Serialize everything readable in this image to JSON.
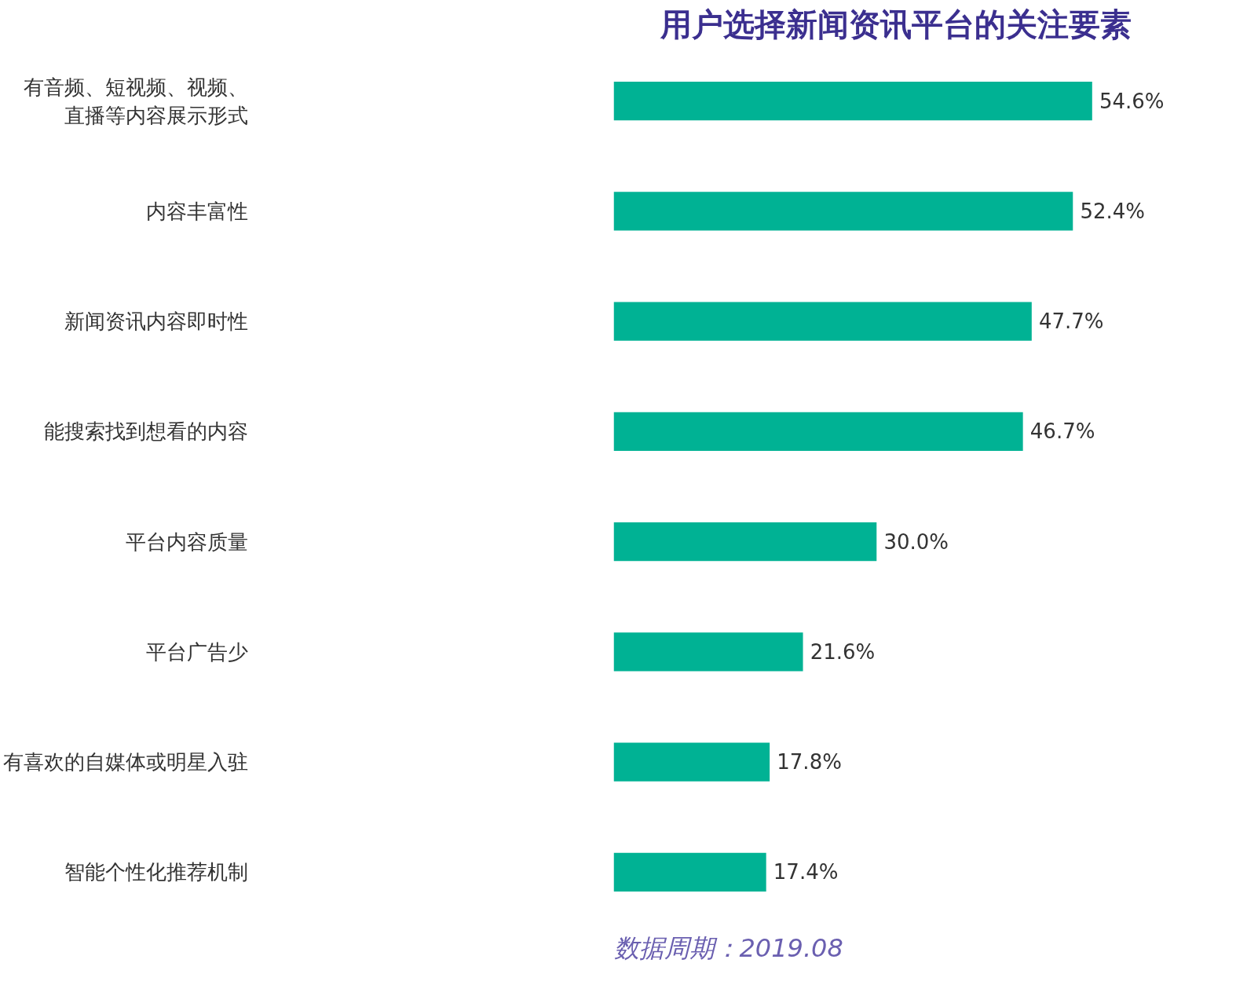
{
  "chart_data": {
    "type": "bar",
    "orientation": "horizontal",
    "title": "用户选择新闻资讯平台的关注要素",
    "categories": [
      "有音频、短视频、视频、直播等内容展示形式",
      "内容丰富性",
      "新闻资讯内容即时性",
      "能搜索找到想看的内容",
      "平台内容质量",
      "平台广告少",
      "有喜欢的自媒体或明星入驻",
      "智能个性化推荐机制"
    ],
    "values": [
      54.6,
      52.4,
      47.7,
      46.7,
      30.0,
      21.6,
      17.8,
      17.4
    ],
    "value_labels": [
      "54.6%",
      "52.4%",
      "47.7%",
      "46.7%",
      "30.0%",
      "21.6%",
      "17.8%",
      "17.4%"
    ],
    "color": "#00b294",
    "grid": false,
    "annotations": [
      "数据周期：2019.08"
    ]
  }
}
